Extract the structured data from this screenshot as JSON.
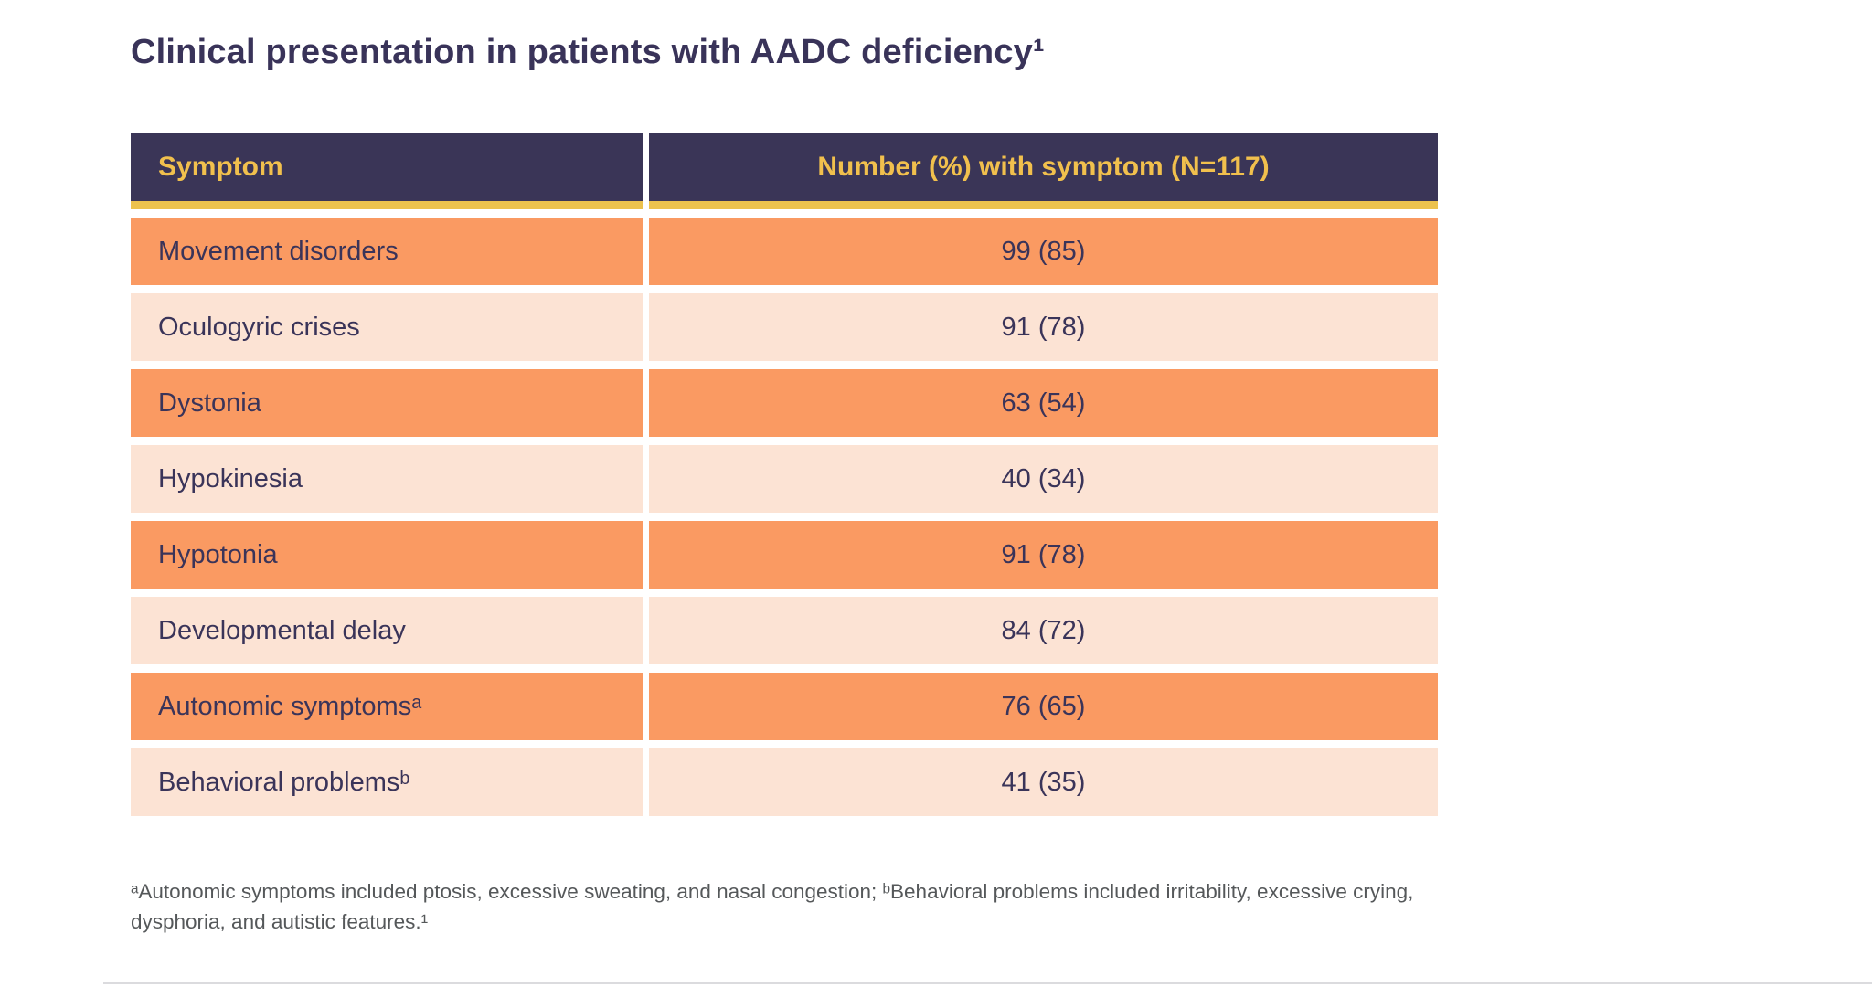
{
  "page": {
    "title": "Clinical presentation in patients with AADC deficiency¹"
  },
  "table": {
    "columns": [
      {
        "label": "Symptom"
      },
      {
        "label": "Number (%) with symptom (N=117)"
      }
    ],
    "rows": [
      {
        "symptom": "Movement disorders",
        "value": "99 (85)"
      },
      {
        "symptom": "Oculogyric crises",
        "value": "91 (78)"
      },
      {
        "symptom": "Dystonia",
        "value": "63 (54)"
      },
      {
        "symptom": "Hypokinesia",
        "value": "40 (34)"
      },
      {
        "symptom": "Hypotonia",
        "value": "91 (78)"
      },
      {
        "symptom": "Developmental delay",
        "value": "84 (72)"
      },
      {
        "symptom": "Autonomic symptomsᵃ",
        "value": "76 (65)"
      },
      {
        "symptom": "Behavioral problemsᵇ",
        "value": "41 (35)"
      }
    ]
  },
  "footnote": "ᵃAutonomic symptoms included ptosis, excessive sweating, and nasal congestion; ᵇBehavioral problems included irritability, excessive crying, dysphoria, and autistic features.¹",
  "colors": {
    "title_text": "#393359",
    "header_bg": "#3A3557",
    "header_text": "#F1C04D",
    "header_underline": "#ECC24D",
    "row_orange": "#FA9A62",
    "row_peach": "#FCE3D4",
    "row_text": "#3A3459",
    "footnote_text": "#55585A"
  },
  "chart_data": {
    "type": "table",
    "title": "Clinical presentation in patients with AADC deficiency¹",
    "columns": [
      "Symptom",
      "Number (%) with symptom (N=117)"
    ],
    "n_total": 117,
    "rows": [
      {
        "symptom": "Movement disorders",
        "number": 99,
        "percent": 85
      },
      {
        "symptom": "Oculogyric crises",
        "number": 91,
        "percent": 78
      },
      {
        "symptom": "Dystonia",
        "number": 63,
        "percent": 54
      },
      {
        "symptom": "Hypokinesia",
        "number": 40,
        "percent": 34
      },
      {
        "symptom": "Hypotonia",
        "number": 91,
        "percent": 78
      },
      {
        "symptom": "Developmental delay",
        "number": 84,
        "percent": 72
      },
      {
        "symptom": "Autonomic symptomsᵃ",
        "number": 76,
        "percent": 65
      },
      {
        "symptom": "Behavioral problemsᵇ",
        "number": 41,
        "percent": 35
      }
    ],
    "footnote": "ᵃAutonomic symptoms included ptosis, excessive sweating, and nasal congestion; ᵇBehavioral problems included irritability, excessive crying, dysphoria, and autistic features.¹"
  }
}
